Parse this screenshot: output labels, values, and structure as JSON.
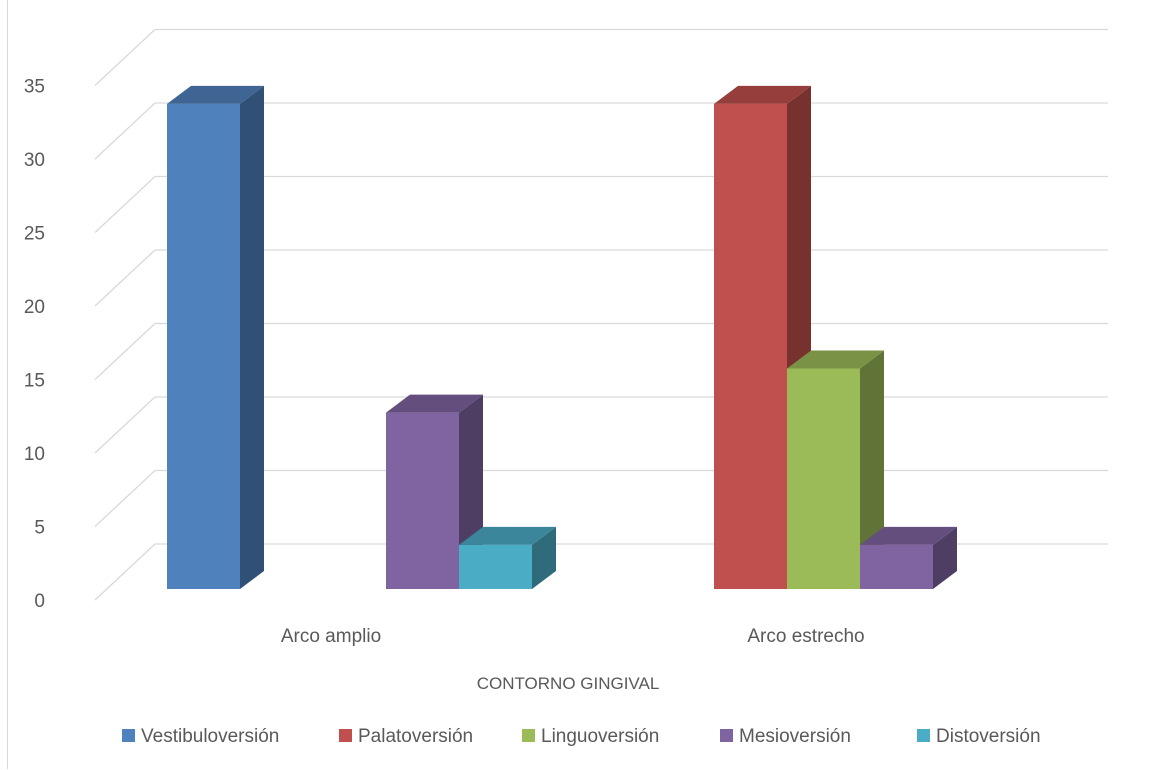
{
  "chart_data": {
    "type": "bar",
    "subtype": "3d-clustered-column",
    "categories": [
      "Arco amplio",
      "Arco estrecho"
    ],
    "series": [
      {
        "name": "Vestibuloversión",
        "values": [
          33,
          0
        ],
        "color": "#4F81BD"
      },
      {
        "name": "Palatoversión",
        "values": [
          0,
          33
        ],
        "color": "#C0504D"
      },
      {
        "name": "Linguoversión",
        "values": [
          0,
          15
        ],
        "color": "#9BBB59"
      },
      {
        "name": "Mesioversión",
        "values": [
          12,
          3
        ],
        "color": "#8064A2"
      },
      {
        "name": "Distoversión",
        "values": [
          3,
          0
        ],
        "color": "#4BACC6"
      }
    ],
    "ylim": [
      0,
      35
    ],
    "yticks": [
      "0",
      "5",
      "10",
      "15",
      "20",
      "25",
      "30",
      "35"
    ],
    "xlabel": "CONTORNO GINGIVAL",
    "ylabel": "",
    "grid": true,
    "legend": "bottom"
  }
}
